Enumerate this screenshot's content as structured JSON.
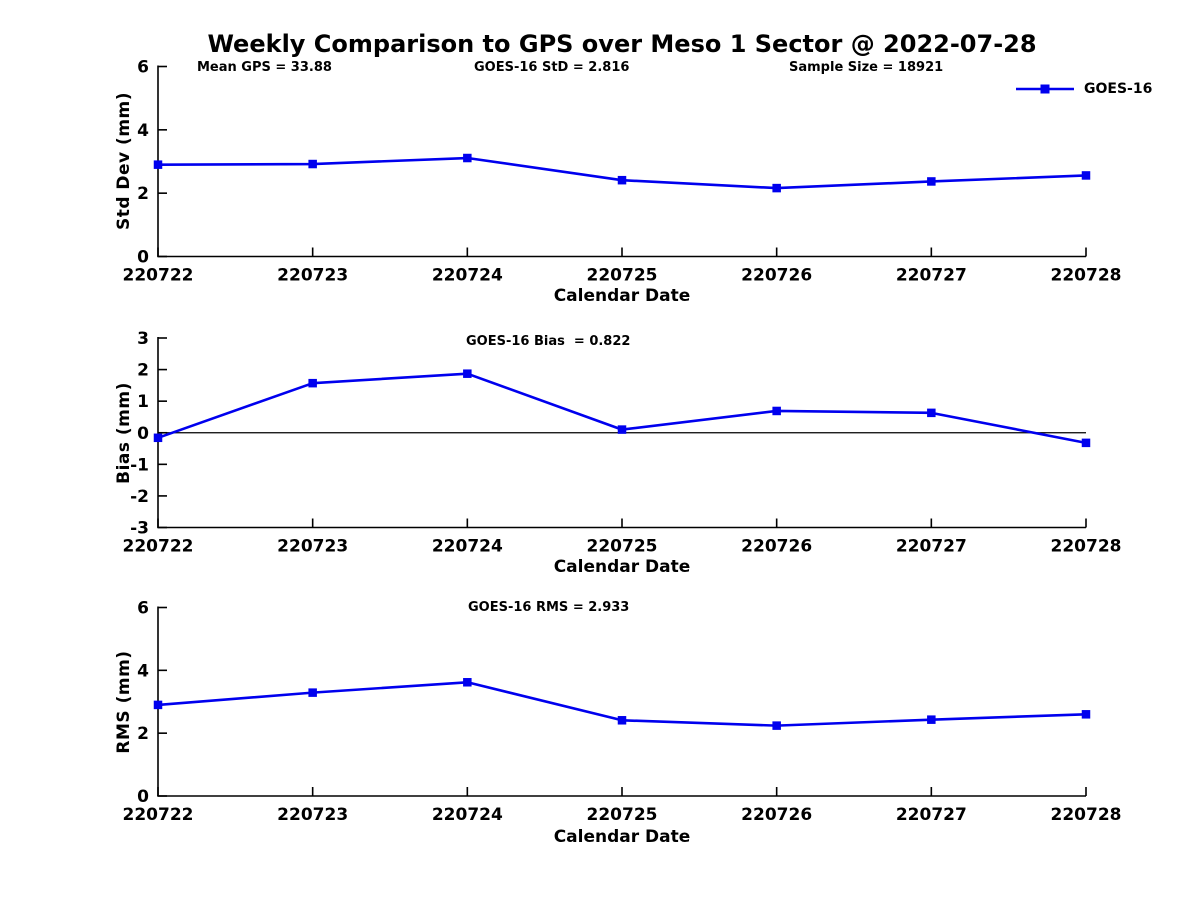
{
  "figure": {
    "title": "Weekly Comparison to GPS over Meso 1 Sector @ 2022-07-28",
    "annotations": {
      "mean_gps": "Mean GPS = 33.88",
      "goes16_std": "GOES-16 StD = 2.816",
      "sample_size": "Sample Size = 18921"
    }
  },
  "legend": {
    "label": "GOES-16",
    "color": "#0000ee",
    "position": "top-right"
  },
  "chart_data": [
    {
      "id": "std_dev",
      "type": "line",
      "title": "",
      "subtitle": "",
      "categories": [
        "220722",
        "220723",
        "220724",
        "220725",
        "220726",
        "220727",
        "220728"
      ],
      "series": [
        {
          "name": "GOES-16",
          "color": "#0000ee",
          "marker": "square",
          "values": [
            2.9,
            2.92,
            3.11,
            2.41,
            2.16,
            2.37,
            2.56
          ]
        }
      ],
      "xlabel": "Calendar Date",
      "ylabel": "Std Dev (mm)",
      "ylim": [
        0,
        6
      ],
      "yticks": [
        0,
        2,
        4,
        6
      ],
      "grid": false,
      "zero_line": false
    },
    {
      "id": "bias",
      "type": "line",
      "title": "",
      "subtitle": "GOES-16 Bias  = 0.822",
      "categories": [
        "220722",
        "220723",
        "220724",
        "220725",
        "220726",
        "220727",
        "220728"
      ],
      "series": [
        {
          "name": "GOES-16",
          "color": "#0000ee",
          "marker": "square",
          "values": [
            -0.16,
            1.57,
            1.87,
            0.1,
            0.69,
            0.63,
            -0.32
          ]
        }
      ],
      "xlabel": "Calendar Date",
      "ylabel": "Bias (mm)",
      "ylim": [
        -3,
        3
      ],
      "yticks": [
        -3,
        -2,
        -1,
        0,
        1,
        2,
        3
      ],
      "grid": false,
      "zero_line": true
    },
    {
      "id": "rms",
      "type": "line",
      "title": "",
      "subtitle": "GOES-16 RMS = 2.933",
      "categories": [
        "220722",
        "220723",
        "220724",
        "220725",
        "220726",
        "220727",
        "220728"
      ],
      "series": [
        {
          "name": "GOES-16",
          "color": "#0000ee",
          "marker": "square",
          "values": [
            2.9,
            3.29,
            3.62,
            2.41,
            2.24,
            2.43,
            2.6
          ]
        }
      ],
      "xlabel": "Calendar Date",
      "ylabel": "RMS (mm)",
      "ylim": [
        0,
        6
      ],
      "yticks": [
        0,
        2,
        4,
        6
      ],
      "grid": false,
      "zero_line": false
    }
  ]
}
